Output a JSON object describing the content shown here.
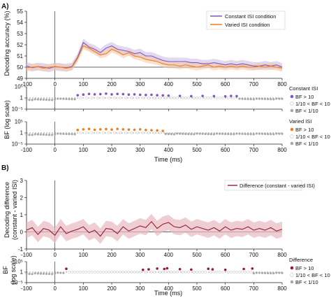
{
  "figure": {
    "panels": {
      "A": "A)",
      "B": "B)"
    },
    "time_label": "Time (ms)",
    "bf_label": "BF (log scale)",
    "acc_ylabel": "Decoding accuracy (%)",
    "diff_ylabel_1": "Decoding difference",
    "diff_ylabel_2": "(constant - varied ISI)",
    "bf_b_ylabel": "BF",
    "bf_b_ylabel2": "(log scale)",
    "bf_legend": {
      "constant_title": "Constant ISI",
      "varied_title": "Varied ISI",
      "difference_title": "Difference",
      "entries": [
        "BF > 10",
        "1/10 < BF < 10",
        "BF < 1/10"
      ]
    },
    "colors": {
      "constant": "#7e57c2",
      "constant_band": "#c9b8e6",
      "varied": "#ef7d22",
      "varied_band": "#f8c9a0",
      "difference": "#9b1b30",
      "difference_band": "#e8b9c1",
      "bf_null": "#a8a8a8"
    }
  },
  "chart_data": [
    {
      "type": "line",
      "title": "",
      "xlabel": "",
      "ylabel": "Decoding accuracy (%)",
      "xlim": [
        -100,
        800
      ],
      "ylim": [
        49,
        55
      ],
      "xticks": [
        -100,
        0,
        100,
        200,
        300,
        400,
        500,
        600,
        700,
        800
      ],
      "yticks": [
        49,
        50,
        51,
        52,
        53,
        54,
        55
      ],
      "x": [
        -100,
        -80,
        -60,
        -40,
        -20,
        0,
        20,
        40,
        60,
        80,
        100,
        120,
        140,
        160,
        180,
        200,
        220,
        240,
        260,
        280,
        300,
        320,
        340,
        360,
        380,
        400,
        420,
        440,
        460,
        480,
        500,
        520,
        540,
        560,
        580,
        600,
        620,
        640,
        660,
        680,
        700,
        720,
        740,
        760,
        780,
        800
      ],
      "series": [
        {
          "name": "Constant ISI condition",
          "values": [
            50.1,
            49.95,
            50.05,
            50.0,
            49.9,
            50.05,
            50.0,
            49.95,
            50.05,
            50.9,
            52.2,
            51.8,
            51.6,
            51.3,
            51.7,
            51.9,
            51.6,
            51.5,
            51.4,
            51.2,
            51.3,
            51.0,
            51.0,
            50.8,
            50.6,
            50.5,
            50.5,
            50.5,
            50.5,
            50.4,
            50.4,
            50.3,
            50.3,
            50.4,
            50.3,
            50.2,
            50.3,
            50.2,
            50.3,
            50.2,
            50.1,
            50.1,
            50.2,
            50.1,
            50.2,
            50.0
          ],
          "band": 0.35
        },
        {
          "name": "Varied ISI condition",
          "values": [
            49.95,
            50.0,
            50.05,
            49.9,
            50.0,
            50.05,
            50.0,
            49.9,
            50.0,
            50.8,
            51.9,
            51.7,
            51.4,
            51.1,
            51.2,
            51.6,
            51.4,
            51.1,
            51.3,
            51.0,
            50.9,
            50.7,
            50.6,
            50.5,
            50.3,
            50.2,
            50.2,
            50.1,
            50.2,
            50.1,
            50.0,
            50.1,
            50.2,
            50.0,
            50.1,
            50.0,
            50.1,
            50.0,
            50.1,
            50.0,
            50.0,
            50.1,
            50.0,
            50.1,
            50.0,
            49.9
          ],
          "band": 0.3
        }
      ]
    },
    {
      "type": "scatter",
      "title": "",
      "xlabel": "",
      "ylabel": "",
      "xlim": [
        -100,
        800
      ],
      "ylim": [
        -5,
        5
      ],
      "yscale": "log10",
      "yticks": [
        "10^5",
        "1",
        "10^-5"
      ],
      "series": [
        {
          "name": "Constant ISI",
          "x": [
            80,
            100,
            120,
            140,
            160,
            180,
            200,
            220,
            240,
            260,
            280,
            300,
            320,
            340,
            360,
            380,
            400,
            440,
            480,
            520,
            560,
            600,
            620,
            640
          ],
          "values": [
            1.2,
            1.5,
            1.8,
            1.6,
            1.7,
            1.9,
            1.6,
            1.8,
            1.7,
            1.5,
            1.6,
            1.4,
            1.3,
            1.4,
            1.2,
            1.1,
            1.0,
            0.9,
            0.8,
            0.9,
            0.8,
            0.7,
            0.9,
            0.8
          ]
        },
        {
          "name": "Varied ISI",
          "x": [
            80,
            100,
            120,
            140,
            160,
            180,
            200,
            220,
            240,
            260,
            280,
            300,
            320,
            340,
            360,
            380
          ],
          "values": [
            1.3,
            1.6,
            1.8,
            1.4,
            1.6,
            1.7,
            1.5,
            1.8,
            1.6,
            1.5,
            1.4,
            1.6,
            1.3,
            1.2,
            1.1,
            0.9
          ]
        }
      ]
    },
    {
      "type": "line",
      "title": "",
      "xlabel": "Time (ms)",
      "ylabel": "Decoding difference (constant - varied ISI)",
      "xlim": [
        -100,
        800
      ],
      "ylim": [
        -1,
        3
      ],
      "xticks": [
        -100,
        0,
        100,
        200,
        300,
        400,
        500,
        600,
        700,
        800
      ],
      "yticks": [
        -1,
        0,
        1,
        2,
        3
      ],
      "x": [
        -100,
        -80,
        -60,
        -40,
        -20,
        0,
        20,
        40,
        60,
        80,
        100,
        120,
        140,
        160,
        180,
        200,
        220,
        240,
        260,
        280,
        300,
        320,
        340,
        360,
        380,
        400,
        420,
        440,
        460,
        480,
        500,
        520,
        540,
        560,
        580,
        600,
        620,
        640,
        660,
        680,
        700,
        720,
        740,
        760,
        780,
        800
      ],
      "series": [
        {
          "name": "Difference (constant - varied ISI)",
          "values": [
            0.1,
            0.25,
            -0.15,
            0.2,
            0.1,
            -0.2,
            0.3,
            -0.1,
            0.05,
            0.15,
            0.3,
            -0.05,
            0.1,
            -0.25,
            0.2,
            0.15,
            -0.1,
            0.3,
            0.05,
            0.2,
            0.35,
            0.25,
            0.6,
            0.2,
            0.45,
            0.55,
            0.3,
            0.25,
            0.4,
            0.15,
            0.3,
            0.2,
            0.1,
            0.25,
            0.05,
            0.3,
            0.1,
            0.2,
            0.15,
            0.3,
            0.1,
            0.2,
            0.1,
            0.25,
            0.05,
            0.15
          ],
          "band": 0.45
        }
      ]
    },
    {
      "type": "scatter",
      "title": "",
      "xlabel": "Time (ms)",
      "ylabel": "BF (log scale)",
      "xlim": [
        -100,
        800
      ],
      "ylim": [
        -5,
        5
      ],
      "yscale": "log10",
      "xticks": [
        -100,
        0,
        100,
        200,
        300,
        400,
        500,
        600,
        700,
        800
      ],
      "yticks": [
        "10^5",
        "1",
        "10^-5"
      ],
      "series": [
        {
          "name": "Difference",
          "x": [
            40,
            310,
            330,
            360,
            385,
            395,
            440,
            480,
            540,
            555,
            600,
            665,
            695
          ],
          "values": [
            1.6,
            1.1,
            1.3,
            1.7,
            1.5,
            1.8,
            1.4,
            1.2,
            1.6,
            1.3,
            1.1,
            1.5,
            1.7
          ]
        }
      ]
    }
  ]
}
